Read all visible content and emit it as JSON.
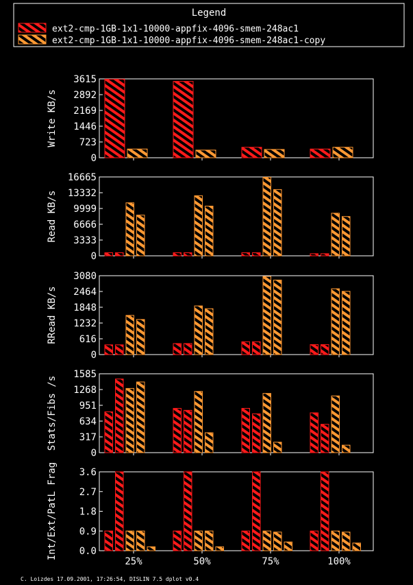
{
  "legend": {
    "title": "Legend",
    "entries": [
      {
        "label": "ext2-cmp-1GB-1x1-10000-appfix-4096-smem-248ac1",
        "color": "#ff1a1a"
      },
      {
        "label": "ext2-cmp-1GB-1x1-10000-appfix-4096-smem-248ac1-copy",
        "color": "#ff9933"
      }
    ]
  },
  "footer": "C. Loizdes 17.09.2001, 17:26:54, DISLIN 7.5 dplot v0.4",
  "chart_data": [
    {
      "type": "bar",
      "ylabel": "Write KB/s",
      "categories": [
        "25%",
        "50%",
        "75%",
        "100%"
      ],
      "ylim": [
        0,
        3615
      ],
      "yticks": [
        0,
        723,
        1446,
        2169,
        2892,
        3615
      ],
      "series": [
        {
          "values": [
            3600,
            3500,
            480,
            400
          ],
          "color": "#ff1a1a"
        },
        {
          "values": [
            400,
            350,
            380,
            480
          ],
          "color": "#ff9933"
        }
      ]
    },
    {
      "type": "bar",
      "ylabel": "Read KB/s",
      "categories": [
        "25%",
        "50%",
        "75%",
        "100%"
      ],
      "ylim": [
        0,
        16665
      ],
      "yticks": [
        0,
        3333,
        6666,
        9999,
        13332,
        16665
      ],
      "series": [
        {
          "values": [
            650,
            650,
            650,
            450
          ],
          "color": "#ff1a1a"
        },
        {
          "values": [
            650,
            650,
            650,
            450
          ],
          "color": "#ff1a1a"
        },
        {
          "values": [
            11200,
            12700,
            16600,
            9000
          ],
          "color": "#ff9933"
        },
        {
          "values": [
            8600,
            10500,
            14000,
            8300
          ],
          "color": "#ff9933"
        }
      ]
    },
    {
      "type": "bar",
      "ylabel": "RRead KB/s",
      "categories": [
        "25%",
        "50%",
        "75%",
        "100%"
      ],
      "ylim": [
        0,
        3080
      ],
      "yticks": [
        0,
        616,
        1232,
        1848,
        2464,
        3080
      ],
      "series": [
        {
          "values": [
            380,
            430,
            500,
            390
          ],
          "color": "#ff1a1a"
        },
        {
          "values": [
            380,
            430,
            500,
            390
          ],
          "color": "#ff1a1a"
        },
        {
          "values": [
            1530,
            1900,
            3050,
            2570
          ],
          "color": "#ff9933"
        },
        {
          "values": [
            1370,
            1790,
            2910,
            2470
          ],
          "color": "#ff9933"
        }
      ]
    },
    {
      "type": "bar",
      "ylabel": "Stats/Fibs /s",
      "categories": [
        "25%",
        "50%",
        "75%",
        "100%"
      ],
      "ylim": [
        0,
        1585
      ],
      "yticks": [
        0,
        317,
        634,
        951,
        1268,
        1585
      ],
      "series": [
        {
          "values": [
            820,
            890,
            890,
            800
          ],
          "color": "#ff1a1a"
        },
        {
          "values": [
            1480,
            850,
            780,
            570
          ],
          "color": "#ff1a1a"
        },
        {
          "values": [
            1290,
            1230,
            1190,
            1140
          ],
          "color": "#ff9933"
        },
        {
          "values": [
            1420,
            400,
            210,
            150
          ],
          "color": "#ff9933"
        }
      ]
    },
    {
      "type": "bar",
      "ylabel": "Int/Ext/PatL Frag",
      "categories": [
        "25%",
        "50%",
        "75%",
        "100%"
      ],
      "ylim": [
        0,
        3.6
      ],
      "yticks": [
        0.0,
        0.9,
        1.8,
        2.7,
        3.6
      ],
      "series": [
        {
          "values": [
            0.9,
            0.9,
            0.9,
            0.9
          ],
          "color": "#ff1a1a"
        },
        {
          "values": [
            3.6,
            3.6,
            3.6,
            3.6
          ],
          "color": "#ff1a1a"
        },
        {
          "values": [
            0.9,
            0.9,
            0.9,
            0.9
          ],
          "color": "#ff9933"
        },
        {
          "values": [
            0.9,
            0.9,
            0.85,
            0.85
          ],
          "color": "#ff9933"
        },
        {
          "values": [
            0.18,
            0.18,
            0.4,
            0.35
          ],
          "color": "#ff9933"
        }
      ]
    }
  ]
}
